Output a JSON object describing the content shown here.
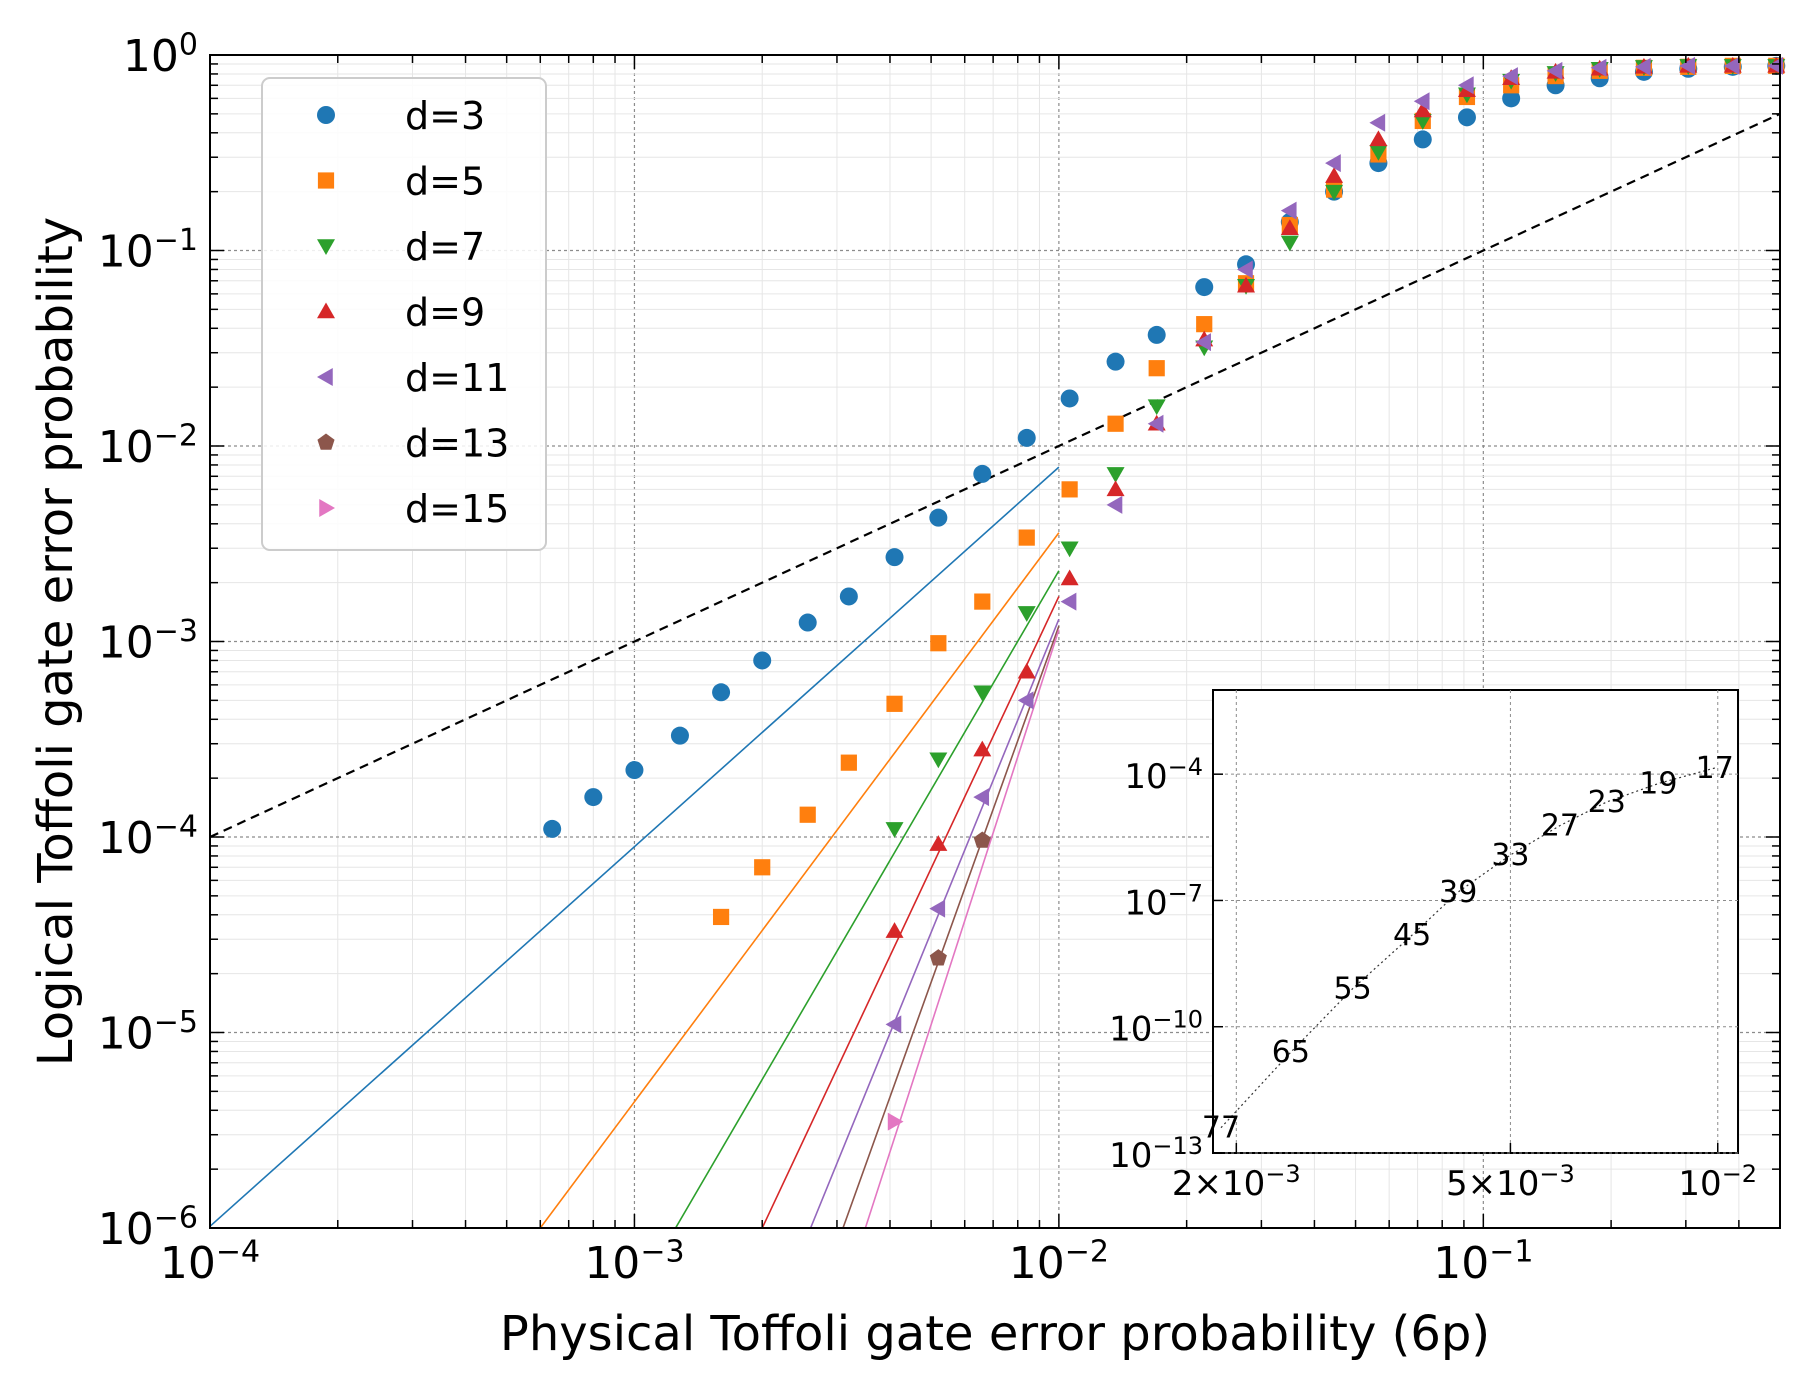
{
  "chart_data": {
    "type": "scatter",
    "xlabel": "Physical Toffoli gate error probability (6p)",
    "ylabel": "Logical Toffoli gate error probability",
    "xscale": "log",
    "yscale": "log",
    "xlim": [
      0.0001,
      0.5
    ],
    "ylim": [
      1e-06,
      1
    ],
    "grid": true,
    "legend_position": "top-left",
    "x_ticks": [
      {
        "base": "10",
        "exp": "−4",
        "value": 0.0001
      },
      {
        "base": "10",
        "exp": "−3",
        "value": 0.001
      },
      {
        "base": "10",
        "exp": "−2",
        "value": 0.01
      },
      {
        "base": "10",
        "exp": "−1",
        "value": 0.1
      }
    ],
    "y_ticks": [
      {
        "base": "10",
        "exp": "−6",
        "value": 1e-06
      },
      {
        "base": "10",
        "exp": "−5",
        "value": 1e-05
      },
      {
        "base": "10",
        "exp": "−4",
        "value": 0.0001
      },
      {
        "base": "10",
        "exp": "−3",
        "value": 0.001
      },
      {
        "base": "10",
        "exp": "−2",
        "value": 0.01
      },
      {
        "base": "10",
        "exp": "−1",
        "value": 0.1
      },
      {
        "base": "10",
        "exp": "0",
        "value": 1
      }
    ],
    "series": [
      {
        "name": "d=3",
        "color": "#1f77b4",
        "marker": "circle",
        "x": [
          0.00064,
          0.0008,
          0.001,
          0.00128,
          0.0016,
          0.002,
          0.00256,
          0.0032,
          0.0041,
          0.0052,
          0.0066,
          0.0084,
          0.0106,
          0.0136,
          0.017,
          0.022,
          0.0276,
          0.035,
          0.0445,
          0.0566,
          0.072,
          0.0915,
          0.1163,
          0.148,
          0.188,
          0.239,
          0.304,
          0.387,
          0.49
        ],
        "y": [
          0.00011,
          0.00016,
          0.00022,
          0.00033,
          0.00055,
          0.0008,
          0.00125,
          0.0017,
          0.0027,
          0.0043,
          0.0072,
          0.011,
          0.0175,
          0.027,
          0.037,
          0.065,
          0.085,
          0.14,
          0.2,
          0.28,
          0.37,
          0.48,
          0.6,
          0.7,
          0.76,
          0.82,
          0.85,
          0.87,
          0.88
        ]
      },
      {
        "name": "d=5",
        "color": "#ff7f0e",
        "marker": "square",
        "x": [
          0.0016,
          0.002,
          0.00256,
          0.0032,
          0.0041,
          0.0052,
          0.0066,
          0.0084,
          0.0106,
          0.0136,
          0.017,
          0.022,
          0.0276,
          0.035,
          0.0445,
          0.0566,
          0.072,
          0.0915,
          0.1163,
          0.148,
          0.188,
          0.239,
          0.304,
          0.387,
          0.49
        ],
        "y": [
          3.9e-05,
          7e-05,
          0.00013,
          0.00024,
          0.00048,
          0.00098,
          0.0016,
          0.0034,
          0.006,
          0.013,
          0.025,
          0.042,
          0.068,
          0.135,
          0.205,
          0.31,
          0.46,
          0.61,
          0.7,
          0.78,
          0.83,
          0.86,
          0.87,
          0.88,
          0.88
        ]
      },
      {
        "name": "d=7",
        "color": "#2ca02c",
        "marker": "triangle-down",
        "x": [
          0.0041,
          0.0052,
          0.0066,
          0.0084,
          0.0106,
          0.0136,
          0.017,
          0.022,
          0.0276,
          0.035,
          0.0445,
          0.0566,
          0.072,
          0.0915,
          0.1163,
          0.148,
          0.188,
          0.239,
          0.304,
          0.387,
          0.49
        ],
        "y": [
          0.00011,
          0.00025,
          0.00055,
          0.0014,
          0.003,
          0.0072,
          0.016,
          0.032,
          0.066,
          0.11,
          0.2,
          0.32,
          0.46,
          0.63,
          0.74,
          0.81,
          0.85,
          0.87,
          0.88,
          0.88,
          0.88
        ]
      },
      {
        "name": "d=9",
        "color": "#d62728",
        "marker": "triangle-up",
        "x": [
          0.0041,
          0.0052,
          0.0066,
          0.0084,
          0.0106,
          0.0136,
          0.017,
          0.022,
          0.0276,
          0.035,
          0.0445,
          0.0566,
          0.072,
          0.0915,
          0.1163,
          0.148,
          0.188,
          0.239,
          0.304,
          0.387,
          0.49
        ],
        "y": [
          3.3e-05,
          9.2e-05,
          0.00028,
          0.0007,
          0.0021,
          0.006,
          0.013,
          0.035,
          0.066,
          0.13,
          0.24,
          0.37,
          0.52,
          0.66,
          0.76,
          0.82,
          0.85,
          0.87,
          0.88,
          0.88,
          0.88
        ]
      },
      {
        "name": "d=11",
        "color": "#9467bd",
        "marker": "triangle-left",
        "x": [
          0.0041,
          0.0052,
          0.0066,
          0.0084,
          0.0106,
          0.0136,
          0.017,
          0.022,
          0.0276,
          0.035,
          0.0445,
          0.0566,
          0.072,
          0.0915,
          0.1163,
          0.148,
          0.188,
          0.239,
          0.304,
          0.387,
          0.49
        ],
        "y": [
          1.1e-05,
          4.3e-05,
          0.00016,
          0.0005,
          0.0016,
          0.005,
          0.013,
          0.034,
          0.08,
          0.16,
          0.28,
          0.45,
          0.58,
          0.7,
          0.78,
          0.83,
          0.86,
          0.87,
          0.88,
          0.88,
          0.88
        ]
      },
      {
        "name": "d=13",
        "color": "#8c564b",
        "marker": "pentagon",
        "x": [
          0.0052,
          0.0066
        ],
        "y": [
          2.4e-05,
          9.6e-05
        ]
      },
      {
        "name": "d=15",
        "color": "#e377c2",
        "marker": "triangle-right",
        "x": [
          0.0041
        ],
        "y": [
          3.5e-06
        ]
      }
    ],
    "fit_lines": [
      {
        "color": "#1f77b4",
        "x": [
          0.0001,
          0.01
        ],
        "y": [
          1.02e-06,
          0.0078
        ]
      },
      {
        "color": "#ff7f0e",
        "x": [
          0.0006,
          0.01
        ],
        "y": [
          1e-06,
          0.0036
        ]
      },
      {
        "color": "#2ca02c",
        "x": [
          0.00125,
          0.01
        ],
        "y": [
          1e-06,
          0.0023
        ]
      },
      {
        "color": "#d62728",
        "x": [
          0.002,
          0.01
        ],
        "y": [
          1e-06,
          0.0017
        ]
      },
      {
        "color": "#9467bd",
        "x": [
          0.0026,
          0.01
        ],
        "y": [
          1e-06,
          0.0013
        ]
      },
      {
        "color": "#8c564b",
        "x": [
          0.0031,
          0.01
        ],
        "y": [
          1e-06,
          0.0012
        ]
      },
      {
        "color": "#e377c2",
        "x": [
          0.0035,
          0.01
        ],
        "y": [
          1e-06,
          0.00115
        ]
      }
    ],
    "reference_line": {
      "style": "dashed",
      "color": "#000000",
      "x": [
        0.0001,
        0.5
      ],
      "y": [
        0.0001,
        0.5
      ]
    },
    "inset": {
      "xscale": "log",
      "yscale": "log",
      "xlim": [
        0.00185,
        0.0107
      ],
      "ylim": [
        1e-13,
        0.01
      ],
      "x_ticks": [
        {
          "prefix": "2×10",
          "exp": "−3",
          "value": 0.002
        },
        {
          "prefix": "5×10",
          "exp": "−3",
          "value": 0.005
        },
        {
          "prefix": "10",
          "exp": "−2",
          "value": 0.01
        }
      ],
      "y_ticks": [
        {
          "base": "10",
          "exp": "−4",
          "value": 0.0001
        },
        {
          "base": "10",
          "exp": "−7",
          "value": 1e-07
        },
        {
          "base": "10",
          "exp": "−10",
          "value": 1e-10
        },
        {
          "base": "10",
          "exp": "−13",
          "value": 1e-13
        }
      ],
      "curve": {
        "style": "dotted",
        "labels": [
          "77",
          "65",
          "55",
          "45",
          "39",
          "33",
          "27",
          "23",
          "19",
          "17"
        ],
        "x": [
          0.0019,
          0.0024,
          0.00295,
          0.0036,
          0.0042,
          0.005,
          0.0059,
          0.0069,
          0.0082,
          0.0099
        ],
        "y": [
          4e-13,
          2.5e-11,
          8e-10,
          1.5e-08,
          1.6e-07,
          1.2e-06,
          6e-06,
          2.2e-05,
          6e-05,
          0.00014
        ]
      }
    }
  }
}
